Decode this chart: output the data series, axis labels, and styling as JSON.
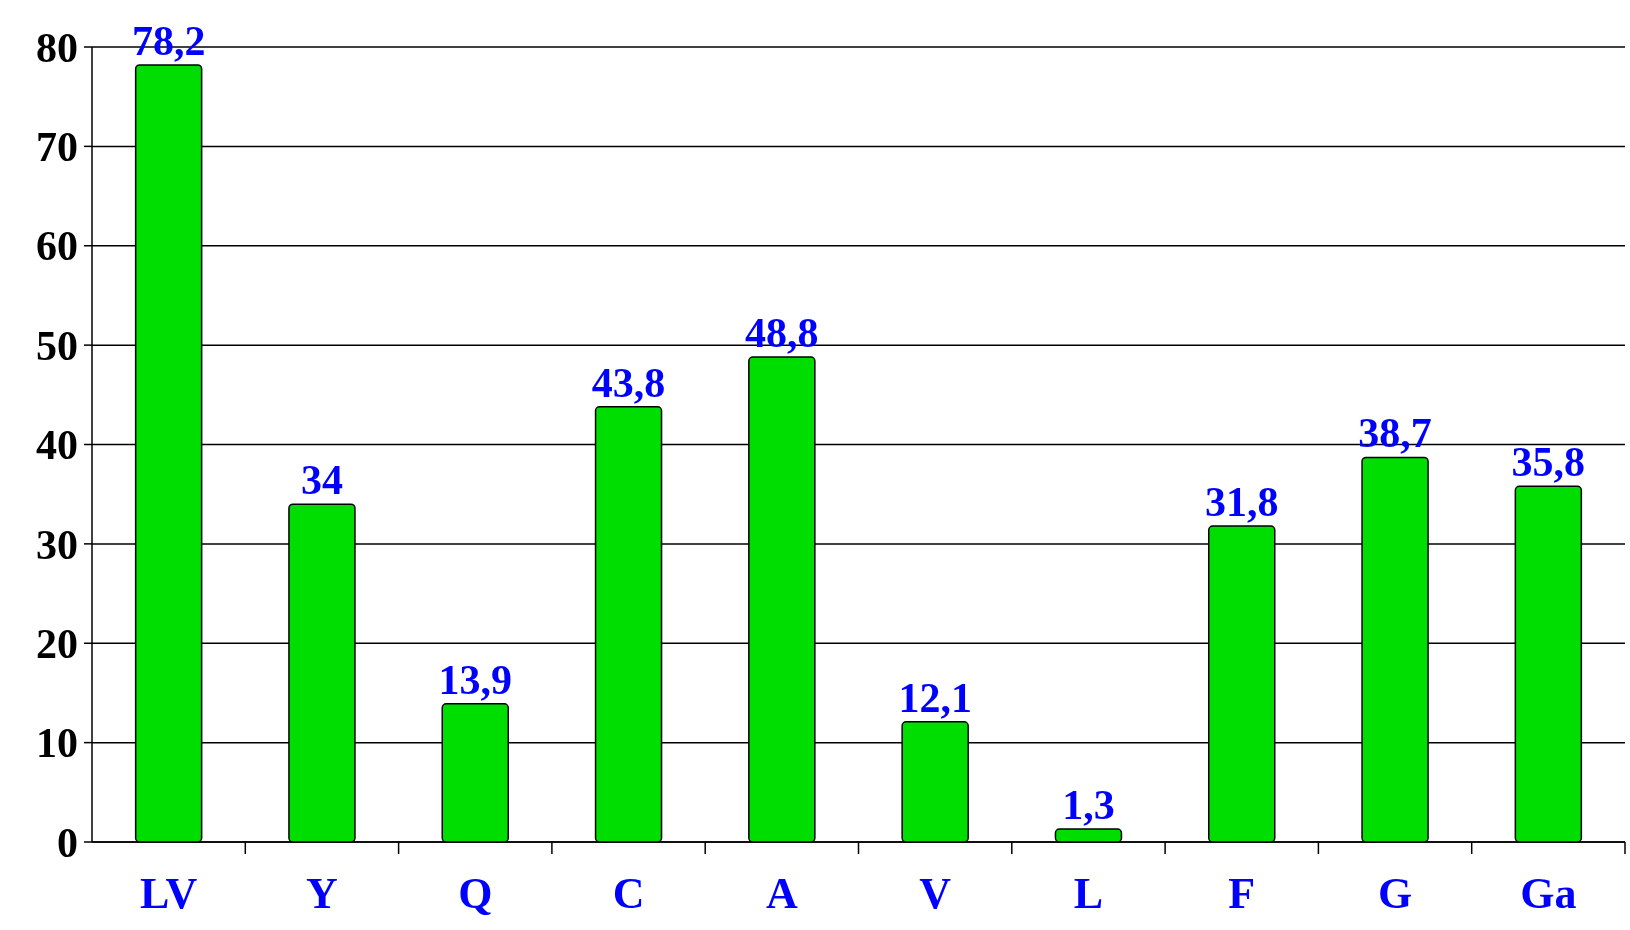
{
  "chart_data": {
    "type": "bar",
    "categories": [
      "LV",
      "Y",
      "Q",
      "C",
      "A",
      "V",
      "L",
      "F",
      "G",
      "Ga"
    ],
    "values": [
      78.2,
      34,
      13.9,
      43.8,
      48.8,
      12.1,
      1.3,
      31.8,
      38.7,
      35.8
    ],
    "value_labels": [
      "78,2",
      "34",
      "13,9",
      "43,8",
      "48,8",
      "12,1",
      "1,3",
      "31,8",
      "38,7",
      "35,8"
    ],
    "color": "#00dd00",
    "ylim": [
      0,
      80
    ],
    "yticks": [
      0,
      10,
      20,
      30,
      40,
      50,
      60,
      70,
      80
    ],
    "grid": "y"
  }
}
